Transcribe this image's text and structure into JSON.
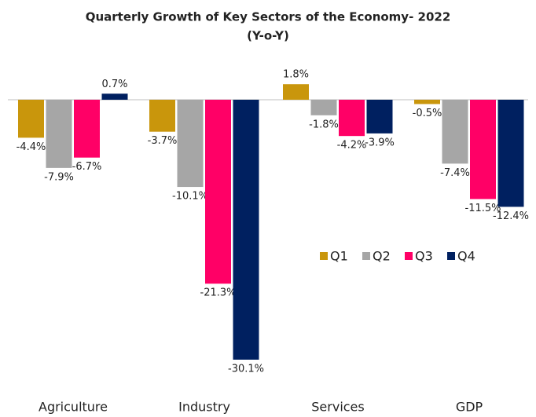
{
  "chart_data": {
    "type": "bar",
    "title": [
      "Quarterly Growth of Key Sectors of the Economy- 2022",
      "(Y-o-Y)"
    ],
    "categories": [
      "Agriculture",
      "Industry",
      "Services",
      "GDP"
    ],
    "series": [
      {
        "name": "Q1",
        "color": "#c9960c",
        "values": [
          -4.4,
          -3.7,
          1.8,
          -0.5
        ],
        "value_labels": [
          "-4.4%",
          "-3.7%",
          "1.8%",
          "-0.5%"
        ]
      },
      {
        "name": "Q2",
        "color": "#a6a6a6",
        "values": [
          -7.9,
          -10.1,
          -1.8,
          -7.4
        ],
        "value_labels": [
          "-7.9%",
          "-10.1%",
          "-1.8%",
          "-7.4%"
        ]
      },
      {
        "name": "Q3",
        "color": "#ff0066",
        "values": [
          -6.7,
          -21.3,
          -4.2,
          -11.5
        ],
        "value_labels": [
          "-6.7%",
          "-21.3%",
          "-4.2%",
          "-11.5%"
        ]
      },
      {
        "name": "Q4",
        "color": "#002060",
        "values": [
          0.7,
          -30.1,
          -3.9,
          -12.4
        ],
        "value_labels": [
          "0.7%",
          "-30.1%",
          "-3.9%",
          "-12.4%"
        ]
      }
    ],
    "legend": "right"
  }
}
